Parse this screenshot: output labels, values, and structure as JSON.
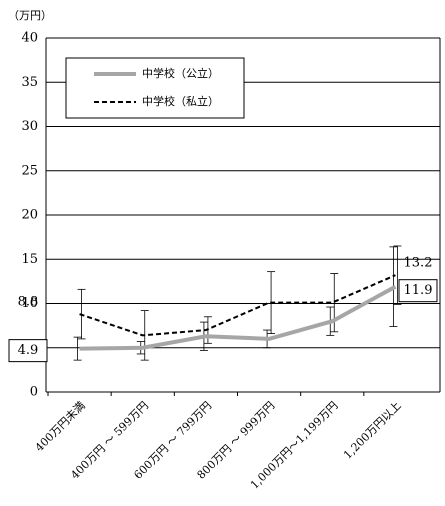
{
  "chart_data": {
    "type": "line",
    "y_unit": "（万円）",
    "categories": [
      "400万円未満",
      "400万円 ～ 599万円",
      "600万円 ～ 799万円",
      "800万円 ～ 999万円",
      "1,000万円～1,199万円",
      "1,200万円以上"
    ],
    "series": [
      {
        "name": "中学校（公立）",
        "color": "#a6a6a6",
        "dash": "solid",
        "values": [
          4.9,
          5.0,
          6.3,
          6.0,
          8.0,
          11.9
        ],
        "errors": [
          1.3,
          0.7,
          1.6,
          1.0,
          1.6,
          4.5
        ],
        "value_labels": [
          "4.9",
          null,
          null,
          null,
          null,
          "11.9"
        ]
      },
      {
        "name": "中学校（私立）",
        "color": "#000000",
        "dash": "dashed",
        "values": [
          8.8,
          6.4,
          7.0,
          10.1,
          10.1,
          13.2
        ],
        "errors": [
          2.8,
          2.8,
          1.5,
          3.5,
          3.3,
          3.3
        ],
        "value_labels": [
          "8.8",
          null,
          null,
          null,
          null,
          "13.2"
        ]
      }
    ],
    "ylim": [
      0,
      40
    ],
    "yticks": [
      0,
      5,
      10,
      15,
      20,
      25,
      30,
      35,
      40
    ],
    "grid": true
  }
}
